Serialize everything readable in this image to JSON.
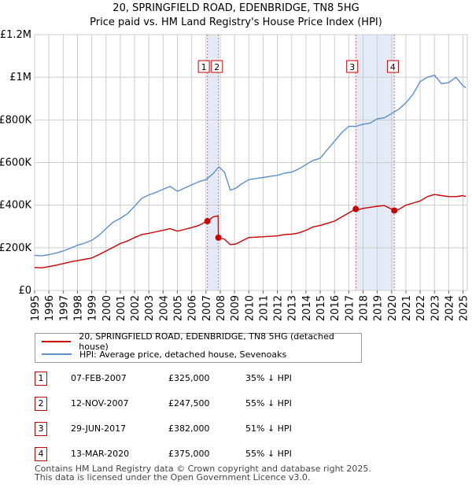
{
  "chart_data": {
    "type": "line",
    "title": "20, SPRINGFIELD ROAD, EDENBRIDGE, TN8 5HG",
    "subtitle": "Price paid vs. HM Land Registry's House Price Index (HPI)",
    "xlim": [
      1995,
      2025.3
    ],
    "ylim": [
      0,
      1200000
    ],
    "y_ticks": [
      {
        "value": 0,
        "label": "£0"
      },
      {
        "value": 200000,
        "label": "£200K"
      },
      {
        "value": 400000,
        "label": "£400K"
      },
      {
        "value": 600000,
        "label": "£600K"
      },
      {
        "value": 800000,
        "label": "£800K"
      },
      {
        "value": 1000000,
        "label": "£1M"
      },
      {
        "value": 1200000,
        "label": "£1.2M"
      }
    ],
    "x_ticks": [
      "1995",
      "1996",
      "1997",
      "1998",
      "1999",
      "2000",
      "2001",
      "2002",
      "2003",
      "2004",
      "2005",
      "2006",
      "2007",
      "2008",
      "2009",
      "2010",
      "2011",
      "2012",
      "2013",
      "2014",
      "2015",
      "2016",
      "2017",
      "2018",
      "2019",
      "2020",
      "2021",
      "2022",
      "2023",
      "2024",
      "2025"
    ],
    "series": [
      {
        "name": "HPI: Average price, detached house, Sevenoaks",
        "color": "#5b8fd0",
        "x": [
          1995.0,
          1995.5,
          1996.0,
          1996.5,
          1997.0,
          1997.5,
          1998.0,
          1998.5,
          1999.0,
          1999.5,
          2000.0,
          2000.5,
          2001.0,
          2001.5,
          2002.0,
          2002.5,
          2003.0,
          2003.5,
          2004.0,
          2004.5,
          2005.0,
          2005.5,
          2006.0,
          2006.5,
          2007.0,
          2007.5,
          2007.9,
          2008.3,
          2008.7,
          2009.1,
          2009.5,
          2010.0,
          2010.5,
          2011.0,
          2011.5,
          2012.0,
          2012.5,
          2013.0,
          2013.5,
          2014.0,
          2014.5,
          2015.0,
          2015.5,
          2016.0,
          2016.5,
          2017.0,
          2017.5,
          2018.0,
          2018.5,
          2019.0,
          2019.5,
          2020.0,
          2020.5,
          2021.0,
          2021.5,
          2022.0,
          2022.5,
          2023.0,
          2023.5,
          2024.0,
          2024.5,
          2025.0,
          2025.2
        ],
        "values": [
          165000,
          162000,
          168000,
          175000,
          185000,
          198000,
          212000,
          222000,
          235000,
          258000,
          290000,
          320000,
          338000,
          360000,
          395000,
          432000,
          448000,
          460000,
          475000,
          488000,
          465000,
          480000,
          495000,
          510000,
          520000,
          548000,
          580000,
          555000,
          470000,
          480000,
          500000,
          520000,
          525000,
          530000,
          535000,
          540000,
          550000,
          555000,
          570000,
          590000,
          610000,
          620000,
          660000,
          700000,
          740000,
          770000,
          770000,
          780000,
          785000,
          805000,
          810000,
          830000,
          850000,
          880000,
          920000,
          980000,
          1000000,
          1010000,
          970000,
          975000,
          1000000,
          960000,
          950000
        ]
      },
      {
        "name": "20, SPRINGFIELD ROAD, EDENBRIDGE, TN8 5HG (detached house)",
        "color": "#cc0000",
        "x": [
          1995.0,
          1995.5,
          1996.0,
          1996.5,
          1997.0,
          1997.5,
          1998.0,
          1998.5,
          1999.0,
          1999.5,
          2000.0,
          2000.5,
          2001.0,
          2001.5,
          2002.0,
          2002.5,
          2003.0,
          2003.5,
          2004.0,
          2004.5,
          2005.0,
          2005.5,
          2006.0,
          2006.5,
          2007.1,
          2007.5,
          2007.86,
          2007.87,
          2008.3,
          2008.7,
          2009.1,
          2009.5,
          2010.0,
          2010.5,
          2011.0,
          2011.5,
          2012.0,
          2012.5,
          2013.0,
          2013.5,
          2014.0,
          2014.5,
          2015.0,
          2015.5,
          2016.0,
          2016.5,
          2017.49,
          2017.5,
          2018.0,
          2018.5,
          2019.0,
          2019.5,
          2020.19,
          2020.5,
          2021.0,
          2021.5,
          2022.0,
          2022.5,
          2023.0,
          2023.5,
          2024.0,
          2024.5,
          2025.0,
          2025.2
        ],
        "values": [
          108000,
          106000,
          112000,
          118000,
          126000,
          134000,
          140000,
          146000,
          152000,
          168000,
          185000,
          202000,
          220000,
          232000,
          248000,
          262000,
          268000,
          275000,
          282000,
          290000,
          278000,
          286000,
          295000,
          305000,
          325000,
          345000,
          350000,
          247500,
          240000,
          215000,
          218000,
          232000,
          248000,
          250000,
          252000,
          254000,
          256000,
          262000,
          264000,
          270000,
          282000,
          298000,
          305000,
          315000,
          325000,
          345000,
          382000,
          375000,
          385000,
          390000,
          395000,
          398000,
          375000,
          380000,
          400000,
          410000,
          420000,
          440000,
          450000,
          445000,
          440000,
          440000,
          445000,
          440000
        ]
      }
    ],
    "vlines": [
      2007.1,
      2007.87,
      2017.49,
      2020.19
    ],
    "shaded_ranges": [
      [
        2007.1,
        2007.87
      ],
      [
        2017.49,
        2020.19
      ]
    ],
    "sale_points": [
      {
        "x": 2007.1,
        "value": 325000
      },
      {
        "x": 2007.87,
        "value": 247500
      },
      {
        "x": 2017.49,
        "value": 382000
      },
      {
        "x": 2020.19,
        "value": 375000
      }
    ],
    "markers": [
      "1",
      "2",
      "3",
      "4"
    ],
    "legend": [
      "20, SPRINGFIELD ROAD, EDENBRIDGE, TN8 5HG (detached house)",
      "HPI: Average price, detached house, Sevenoaks"
    ],
    "colors": {
      "property": "#cc0000",
      "hpi": "#5b8fd0",
      "shade": "#dde6f5",
      "grid": "#cccccc"
    }
  },
  "transactions": [
    {
      "num": "1",
      "date": "07-FEB-2007",
      "price": "£325,000",
      "hpi": "35% ↓ HPI"
    },
    {
      "num": "2",
      "date": "12-NOV-2007",
      "price": "£247,500",
      "hpi": "55% ↓ HPI"
    },
    {
      "num": "3",
      "date": "29-JUN-2017",
      "price": "£382,000",
      "hpi": "51% ↓ HPI"
    },
    {
      "num": "4",
      "date": "13-MAR-2020",
      "price": "£375,000",
      "hpi": "55% ↓ HPI"
    }
  ],
  "footer": {
    "line1": "Contains HM Land Registry data © Crown copyright and database right 2025.",
    "line2": "This data is licensed under the Open Government Licence v3.0."
  }
}
